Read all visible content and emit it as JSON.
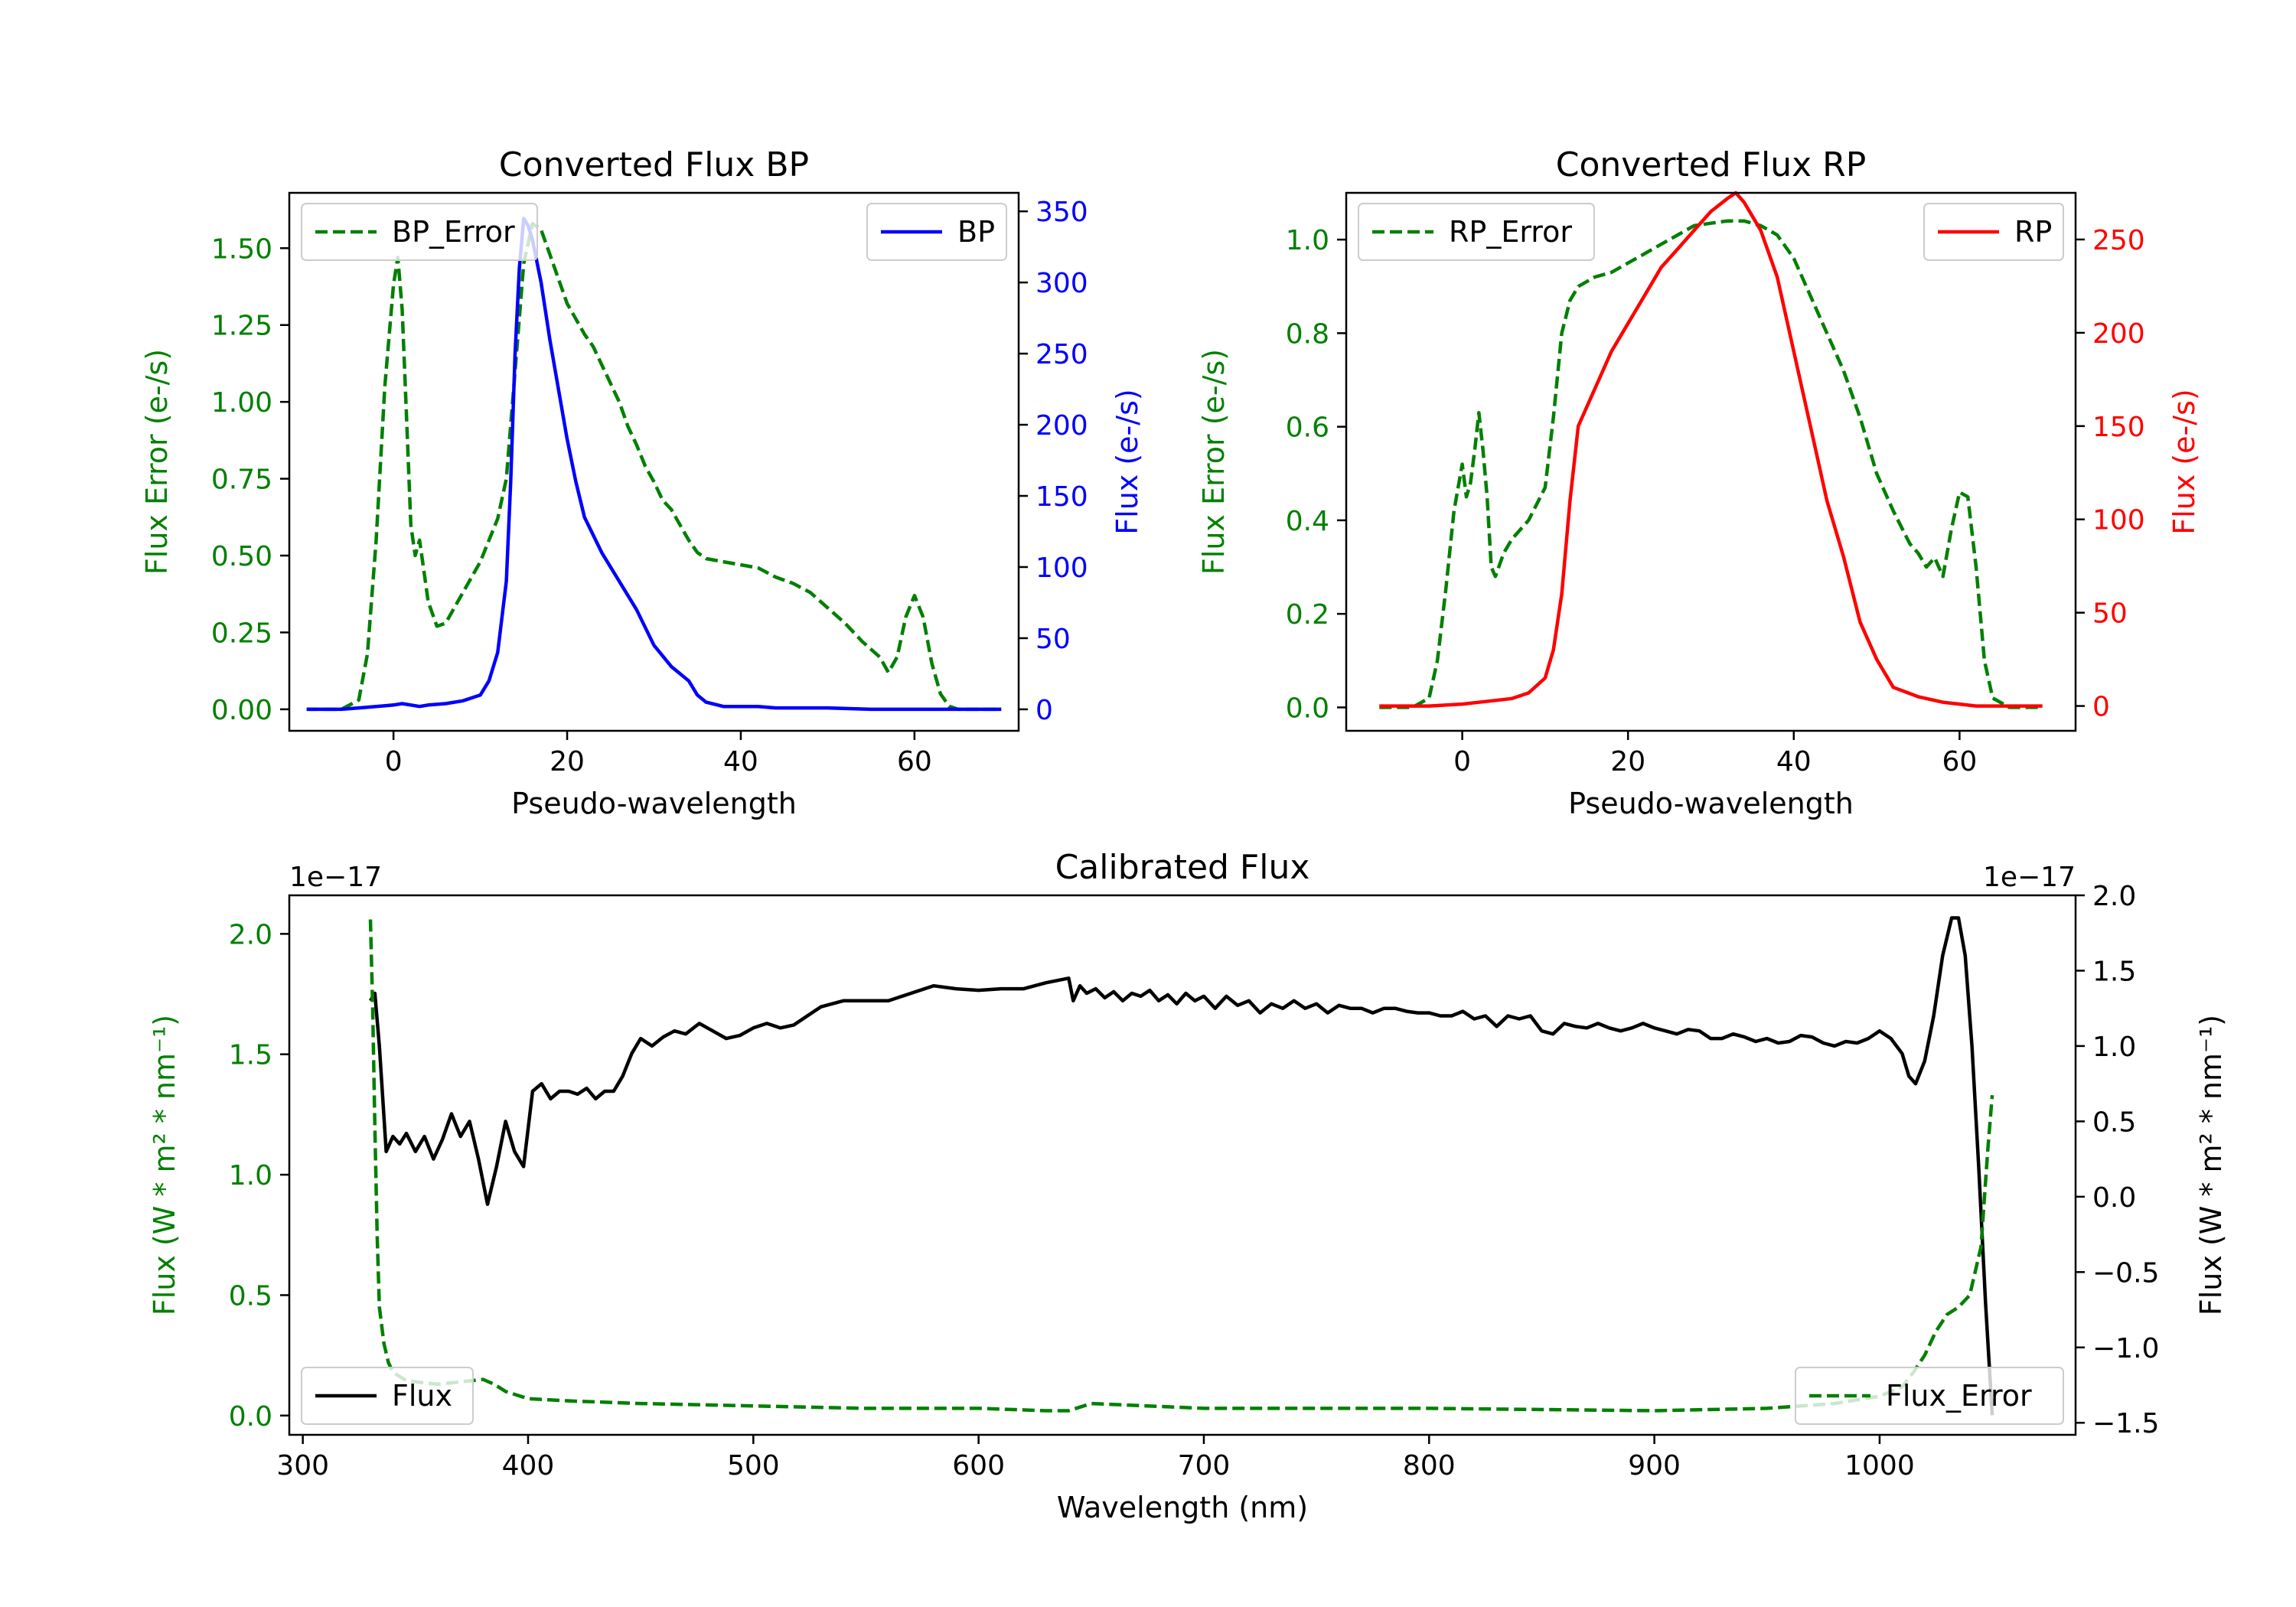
{
  "chart_data": [
    {
      "id": "bp",
      "type": "line",
      "title": "Converted Flux BP",
      "xlabel": "Pseudo-wavelength",
      "ylabel_left": "Flux Error (e-/s)",
      "ylabel_right": "Flux (e-/s)",
      "xlim": [
        -12,
        72
      ],
      "ylim_left": [
        -0.07,
        1.68
      ],
      "ylim_right": [
        -15.1,
        363
      ],
      "xticks": [
        0,
        20,
        40,
        60
      ],
      "yticks_left": [
        0.0,
        0.25,
        0.5,
        0.75,
        1.0,
        1.25,
        1.5
      ],
      "yticks_left_labels": [
        "0.00",
        "0.25",
        "0.50",
        "0.75",
        "1.00",
        "1.25",
        "1.50"
      ],
      "yticks_right": [
        0,
        50,
        100,
        150,
        200,
        250,
        300,
        350
      ],
      "colors": {
        "error": "#008000",
        "flux": "#0000ff",
        "right_axis": "#0000ff",
        "left_axis": "#008000"
      },
      "legend_left": "BP_Error",
      "legend_right": "BP",
      "series": [
        {
          "name": "BP_Error",
          "axis": "left",
          "style": "dashed",
          "color": "#008000",
          "x": [
            -10,
            -6,
            -4,
            -3,
            -2,
            -1,
            0,
            0.5,
            1,
            1.5,
            2,
            2.5,
            3,
            3.5,
            4,
            5,
            6,
            7,
            8,
            9,
            10,
            11,
            12,
            13,
            14,
            15,
            16,
            17,
            18,
            19,
            20,
            21,
            22,
            23,
            24,
            25,
            26,
            27,
            28,
            29,
            30,
            31,
            32,
            33,
            34,
            35,
            36,
            38,
            40,
            42,
            44,
            46,
            48,
            50,
            52,
            54,
            56,
            57,
            58,
            59,
            60,
            61,
            62,
            63,
            64,
            65,
            66,
            68,
            70
          ],
          "y": [
            0,
            0,
            0.03,
            0.18,
            0.55,
            1.05,
            1.38,
            1.47,
            1.3,
            0.95,
            0.6,
            0.5,
            0.55,
            0.45,
            0.35,
            0.27,
            0.28,
            0.33,
            0.38,
            0.43,
            0.48,
            0.55,
            0.62,
            0.75,
            1.1,
            1.45,
            1.58,
            1.56,
            1.48,
            1.4,
            1.32,
            1.27,
            1.22,
            1.18,
            1.12,
            1.06,
            1.0,
            0.92,
            0.86,
            0.79,
            0.74,
            0.68,
            0.65,
            0.6,
            0.55,
            0.51,
            0.49,
            0.48,
            0.47,
            0.46,
            0.43,
            0.41,
            0.38,
            0.33,
            0.28,
            0.22,
            0.17,
            0.12,
            0.17,
            0.3,
            0.37,
            0.3,
            0.15,
            0.05,
            0.01,
            0,
            0,
            0,
            0
          ]
        },
        {
          "name": "BP",
          "axis": "right",
          "style": "solid",
          "color": "#0000ff",
          "x": [
            -10,
            -6,
            -4,
            -2,
            0,
            1,
            2,
            3,
            4,
            6,
            8,
            10,
            11,
            12,
            13,
            13.5,
            14,
            14.5,
            15,
            15.5,
            16,
            17,
            18,
            19,
            20,
            21,
            22,
            24,
            26,
            28,
            30,
            32,
            34,
            35,
            36,
            38,
            40,
            42,
            44,
            46,
            48,
            50,
            55,
            60,
            65,
            70
          ],
          "y": [
            0,
            0,
            1,
            2,
            3,
            4,
            3,
            2,
            3,
            4,
            6,
            10,
            20,
            40,
            90,
            160,
            250,
            310,
            345,
            340,
            330,
            300,
            260,
            225,
            190,
            160,
            135,
            110,
            90,
            70,
            45,
            30,
            20,
            10,
            5,
            2,
            2,
            2,
            1,
            1,
            1,
            1,
            0,
            0,
            0,
            0
          ]
        }
      ]
    },
    {
      "id": "rp",
      "type": "line",
      "title": "Converted Flux RP",
      "xlabel": "Pseudo-wavelength",
      "ylabel_left": "Flux Error (e-/s)",
      "ylabel_right": "Flux (e-/s)",
      "xlim": [
        -14,
        74
      ],
      "ylim_left": [
        -0.05,
        1.1
      ],
      "ylim_right": [
        -13.3,
        275
      ],
      "xticks": [
        0,
        20,
        40,
        60
      ],
      "yticks_left": [
        0.0,
        0.2,
        0.4,
        0.6,
        0.8,
        1.0
      ],
      "yticks_left_labels": [
        "0.0",
        "0.2",
        "0.4",
        "0.6",
        "0.8",
        "1.0"
      ],
      "yticks_right": [
        0,
        50,
        100,
        150,
        200,
        250
      ],
      "colors": {
        "error": "#008000",
        "flux": "#ff0000",
        "right_axis": "#ff0000",
        "left_axis": "#008000"
      },
      "legend_left": "RP_Error",
      "legend_right": "RP",
      "series": [
        {
          "name": "RP_Error",
          "axis": "left",
          "style": "dashed",
          "color": "#008000",
          "x": [
            -10,
            -6,
            -4,
            -3,
            -2,
            -1,
            0,
            0.5,
            1,
            1.5,
            2,
            2.5,
            3,
            3.5,
            4,
            5,
            6,
            8,
            10,
            11,
            12,
            13,
            14,
            16,
            18,
            20,
            22,
            24,
            26,
            28,
            30,
            32,
            34,
            36,
            38,
            40,
            42,
            44,
            46,
            48,
            50,
            52,
            54,
            55,
            56,
            57,
            58,
            59,
            60,
            61,
            62,
            63,
            64,
            66,
            70
          ],
          "y": [
            0,
            0,
            0.02,
            0.1,
            0.25,
            0.42,
            0.52,
            0.45,
            0.48,
            0.55,
            0.63,
            0.55,
            0.45,
            0.3,
            0.28,
            0.33,
            0.36,
            0.4,
            0.47,
            0.62,
            0.8,
            0.87,
            0.9,
            0.92,
            0.93,
            0.95,
            0.97,
            0.99,
            1.01,
            1.03,
            1.035,
            1.04,
            1.04,
            1.03,
            1.01,
            0.96,
            0.88,
            0.8,
            0.72,
            0.62,
            0.5,
            0.42,
            0.35,
            0.33,
            0.3,
            0.32,
            0.28,
            0.38,
            0.46,
            0.45,
            0.3,
            0.1,
            0.02,
            0,
            0
          ]
        },
        {
          "name": "RP",
          "axis": "right",
          "style": "solid",
          "color": "#ff0000",
          "x": [
            -10,
            -4,
            0,
            2,
            4,
            6,
            8,
            10,
            11,
            12,
            13,
            14,
            16,
            18,
            20,
            22,
            24,
            26,
            28,
            30,
            32,
            33,
            34,
            36,
            38,
            40,
            42,
            44,
            46,
            48,
            50,
            52,
            55,
            58,
            60,
            62,
            64,
            70
          ],
          "y": [
            0,
            0,
            1,
            2,
            3,
            4,
            7,
            15,
            30,
            60,
            110,
            150,
            170,
            190,
            205,
            220,
            235,
            245,
            255,
            265,
            272,
            275,
            270,
            255,
            230,
            190,
            150,
            110,
            80,
            45,
            25,
            10,
            5,
            2,
            1,
            0,
            0,
            0
          ]
        }
      ]
    },
    {
      "id": "cal",
      "type": "line",
      "title": "Calibrated Flux",
      "xlabel": "Wavelength (nm)",
      "ylabel_left": "Flux (W * m² * nm⁻¹)",
      "ylabel_right": "Flux (W * m² * nm⁻¹)",
      "offset_left": "1e−17",
      "offset_right": "1e−17",
      "xlim": [
        294,
        1087
      ],
      "ylim_left": [
        -0.08,
        2.16
      ],
      "ylim_right": [
        -1.58,
        2.0
      ],
      "xticks": [
        300,
        400,
        500,
        600,
        700,
        800,
        900,
        1000
      ],
      "yticks_left": [
        0.0,
        0.5,
        1.0,
        1.5,
        2.0
      ],
      "yticks_left_labels": [
        "0.0",
        "0.5",
        "1.0",
        "1.5",
        "2.0"
      ],
      "yticks_right": [
        -1.5,
        -1.0,
        -0.5,
        0.0,
        0.5,
        1.0,
        1.5,
        2.0
      ],
      "yticks_right_labels": [
        "−1.5",
        "−1.0",
        "−0.5",
        "0.0",
        "0.5",
        "1.0",
        "1.5",
        "2.0"
      ],
      "colors": {
        "error": "#008000",
        "flux": "#000000",
        "right_axis": "#000000",
        "left_axis": "#008000"
      },
      "legend_left": "Flux",
      "legend_right": "Flux_Error",
      "series": [
        {
          "name": "Flux",
          "axis": "right",
          "style": "solid",
          "color": "#000000",
          "x": [
            330,
            332,
            334,
            337,
            340,
            343,
            346,
            350,
            354,
            358,
            362,
            366,
            370,
            374,
            378,
            382,
            386,
            390,
            394,
            398,
            402,
            406,
            410,
            414,
            418,
            422,
            426,
            430,
            434,
            438,
            442,
            446,
            450,
            455,
            460,
            465,
            470,
            476,
            482,
            488,
            494,
            500,
            506,
            512,
            518,
            524,
            530,
            540,
            550,
            560,
            570,
            580,
            590,
            600,
            610,
            620,
            630,
            640,
            642,
            645,
            648,
            652,
            656,
            660,
            664,
            668,
            672,
            676,
            680,
            684,
            688,
            692,
            696,
            700,
            705,
            710,
            715,
            720,
            725,
            730,
            735,
            740,
            745,
            750,
            755,
            760,
            765,
            770,
            775,
            780,
            785,
            790,
            795,
            800,
            805,
            810,
            815,
            820,
            825,
            830,
            835,
            840,
            845,
            850,
            855,
            860,
            865,
            870,
            875,
            880,
            885,
            890,
            895,
            900,
            905,
            910,
            915,
            920,
            925,
            930,
            935,
            940,
            945,
            950,
            955,
            960,
            965,
            970,
            975,
            980,
            985,
            990,
            995,
            1000,
            1005,
            1010,
            1013,
            1016,
            1020,
            1024,
            1028,
            1032,
            1035,
            1038,
            1041,
            1044,
            1047,
            1050
          ],
          "y": [
            1.3,
            1.35,
            1.0,
            0.3,
            0.4,
            0.35,
            0.42,
            0.3,
            0.4,
            0.25,
            0.38,
            0.55,
            0.4,
            0.5,
            0.25,
            -0.05,
            0.2,
            0.5,
            0.3,
            0.2,
            0.7,
            0.75,
            0.65,
            0.7,
            0.7,
            0.68,
            0.72,
            0.65,
            0.7,
            0.7,
            0.8,
            0.95,
            1.05,
            1.0,
            1.06,
            1.1,
            1.08,
            1.15,
            1.1,
            1.05,
            1.07,
            1.12,
            1.15,
            1.12,
            1.14,
            1.2,
            1.26,
            1.3,
            1.3,
            1.3,
            1.35,
            1.4,
            1.38,
            1.37,
            1.38,
            1.38,
            1.42,
            1.45,
            1.3,
            1.4,
            1.35,
            1.38,
            1.32,
            1.36,
            1.3,
            1.35,
            1.33,
            1.37,
            1.3,
            1.34,
            1.28,
            1.35,
            1.3,
            1.33,
            1.25,
            1.33,
            1.27,
            1.3,
            1.22,
            1.28,
            1.25,
            1.3,
            1.25,
            1.28,
            1.22,
            1.27,
            1.25,
            1.25,
            1.22,
            1.25,
            1.25,
            1.23,
            1.22,
            1.22,
            1.2,
            1.2,
            1.23,
            1.18,
            1.2,
            1.13,
            1.2,
            1.18,
            1.2,
            1.1,
            1.08,
            1.15,
            1.13,
            1.12,
            1.15,
            1.12,
            1.1,
            1.12,
            1.15,
            1.12,
            1.1,
            1.08,
            1.11,
            1.1,
            1.05,
            1.05,
            1.08,
            1.06,
            1.03,
            1.05,
            1.02,
            1.03,
            1.07,
            1.06,
            1.02,
            1.0,
            1.03,
            1.02,
            1.05,
            1.1,
            1.05,
            0.95,
            0.8,
            0.75,
            0.9,
            1.2,
            1.6,
            1.85,
            1.85,
            1.6,
            1.0,
            0.2,
            -0.7,
            -1.45
          ]
        },
        {
          "name": "Flux_Error",
          "axis": "left",
          "style": "dashed",
          "color": "#008000",
          "x": [
            330,
            331,
            332,
            333,
            334,
            336,
            338,
            340,
            345,
            350,
            360,
            370,
            380,
            385,
            390,
            400,
            420,
            450,
            500,
            550,
            600,
            630,
            640,
            650,
            700,
            800,
            900,
            950,
            980,
            1000,
            1010,
            1015,
            1020,
            1025,
            1030,
            1035,
            1040,
            1045,
            1048,
            1050
          ],
          "y": [
            2.06,
            1.7,
            1.2,
            0.75,
            0.45,
            0.3,
            0.22,
            0.18,
            0.15,
            0.14,
            0.13,
            0.14,
            0.15,
            0.13,
            0.1,
            0.07,
            0.06,
            0.05,
            0.04,
            0.03,
            0.03,
            0.02,
            0.02,
            0.05,
            0.03,
            0.03,
            0.02,
            0.03,
            0.05,
            0.08,
            0.12,
            0.18,
            0.25,
            0.35,
            0.42,
            0.45,
            0.5,
            0.7,
            1.1,
            1.33
          ]
        }
      ]
    }
  ]
}
